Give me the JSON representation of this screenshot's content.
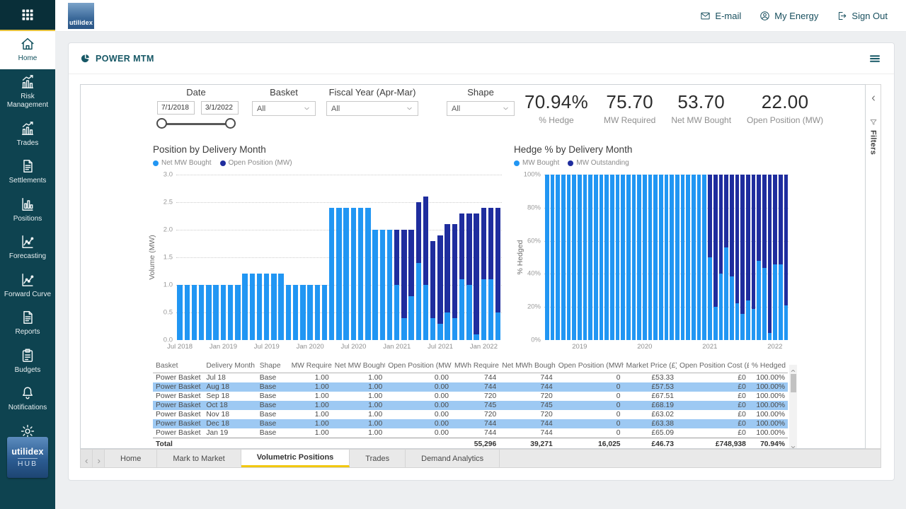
{
  "header": {
    "brand": "utilidex",
    "links": [
      {
        "label": "E-mail",
        "icon": "envelope"
      },
      {
        "label": "My Energy",
        "icon": "person"
      },
      {
        "label": "Sign Out",
        "icon": "signout"
      }
    ]
  },
  "sidebar": {
    "items": [
      {
        "label": "Home",
        "icon": "home",
        "active": true
      },
      {
        "label": "Risk Management",
        "icon": "chart-up",
        "active": false
      },
      {
        "label": "Trades",
        "icon": "chart-up",
        "active": false
      },
      {
        "label": "Settlements",
        "icon": "document",
        "active": false
      },
      {
        "label": "Positions",
        "icon": "bar-chart",
        "active": false
      },
      {
        "label": "Forecasting",
        "icon": "line-chart",
        "active": false
      },
      {
        "label": "Forward Curve",
        "icon": "line-chart",
        "active": false
      },
      {
        "label": "Reports",
        "icon": "document",
        "active": false
      },
      {
        "label": "Budgets",
        "icon": "clipboard",
        "active": false
      },
      {
        "label": "Notifications",
        "icon": "bell",
        "active": false
      },
      {
        "label": "Settings",
        "icon": "gear",
        "active": false
      }
    ],
    "logo": {
      "line1": "utilidex",
      "line2": "HUB"
    }
  },
  "panel": {
    "title": "POWER MTM"
  },
  "filters": {
    "date": {
      "label": "Date",
      "from": "7/1/2018",
      "to": "3/1/2022"
    },
    "basket": {
      "label": "Basket",
      "value": "All"
    },
    "fiscal_year": {
      "label": "Fiscal Year (Apr-Mar)",
      "value": "All"
    },
    "shape": {
      "label": "Shape",
      "value": "All"
    }
  },
  "kpis": [
    {
      "value": "70.94%",
      "label": "% Hedge"
    },
    {
      "value": "75.70",
      "label": "MW Required"
    },
    {
      "value": "53.70",
      "label": "Net MW Bought"
    },
    {
      "value": "22.00",
      "label": "Open Position (MW)"
    }
  ],
  "filters_pane": {
    "label": "Filters"
  },
  "chart_data": [
    {
      "type": "bar",
      "stacked": true,
      "title": "Position by Delivery Month",
      "ylabel": "Volume (MW)",
      "ylim": [
        0,
        3
      ],
      "yticks": [
        "3.0",
        "2.5",
        "2.0",
        "1.5",
        "1.0",
        "0.5",
        "0.0"
      ],
      "categories": [
        "Jul 2018",
        "Aug 2018",
        "Sep 2018",
        "Oct 2018",
        "Nov 2018",
        "Dec 2018",
        "Jan 2019",
        "Feb 2019",
        "Mar 2019",
        "Apr 2019",
        "May 2019",
        "Jun 2019",
        "Jul 2019",
        "Aug 2019",
        "Sep 2019",
        "Oct 2019",
        "Nov 2019",
        "Dec 2019",
        "Jan 2020",
        "Feb 2020",
        "Mar 2020",
        "Apr 2020",
        "May 2020",
        "Jun 2020",
        "Jul 2020",
        "Aug 2020",
        "Sep 2020",
        "Oct 2020",
        "Nov 2020",
        "Dec 2020",
        "Jan 2021",
        "Feb 2021",
        "Mar 2021",
        "Apr 2021",
        "May 2021",
        "Jun 2021",
        "Jul 2021",
        "Aug 2021",
        "Sep 2021",
        "Oct 2021",
        "Nov 2021",
        "Dec 2021",
        "Jan 2022",
        "Feb 2022",
        "Mar 2022"
      ],
      "series": [
        {
          "name": "Net MW Bought",
          "color": "#2196f3",
          "values": [
            1,
            1,
            1,
            1,
            1,
            1,
            1,
            1,
            1,
            1.2,
            1.2,
            1.2,
            1.2,
            1.2,
            1.2,
            1,
            1,
            1,
            1,
            1,
            1,
            2.4,
            2.4,
            2.4,
            2.4,
            2.4,
            2.4,
            2,
            2,
            2,
            1,
            0.4,
            0.8,
            1.4,
            1,
            0.4,
            0.3,
            0.5,
            0.4,
            1.1,
            1,
            0.1,
            1.1,
            1.1,
            0.5
          ]
        },
        {
          "name": "Open Position (MW)",
          "color": "#1f2d9e",
          "values": [
            0,
            0,
            0,
            0,
            0,
            0,
            0,
            0,
            0,
            0,
            0,
            0,
            0,
            0,
            0,
            0,
            0,
            0,
            0,
            0,
            0,
            0,
            0,
            0,
            0,
            0,
            0,
            0,
            0,
            0,
            1,
            1.6,
            1.2,
            1.1,
            1.6,
            1.4,
            1.6,
            1.6,
            1.7,
            1.2,
            1.3,
            2.2,
            1.3,
            1.3,
            1.9
          ]
        }
      ],
      "x_ticks": [
        {
          "i": 0,
          "label": "Jul 2018"
        },
        {
          "i": 6,
          "label": "Jan 2019"
        },
        {
          "i": 12,
          "label": "Jul 2019"
        },
        {
          "i": 18,
          "label": "Jan 2020"
        },
        {
          "i": 24,
          "label": "Jul 2020"
        },
        {
          "i": 30,
          "label": "Jan 2021"
        },
        {
          "i": 36,
          "label": "Jul 2021"
        },
        {
          "i": 42,
          "label": "Jan 2022"
        }
      ]
    },
    {
      "type": "bar",
      "stacked": true,
      "percent": true,
      "title": "Hedge % by Delivery Month",
      "ylabel": "% Hedged",
      "ylim": [
        0,
        100
      ],
      "yticks": [
        "100%",
        "80%",
        "60%",
        "40%",
        "20%",
        "0%"
      ],
      "categories": [
        "Jul 2018",
        "Aug 2018",
        "Sep 2018",
        "Oct 2018",
        "Nov 2018",
        "Dec 2018",
        "Jan 2019",
        "Feb 2019",
        "Mar 2019",
        "Apr 2019",
        "May 2019",
        "Jun 2019",
        "Jul 2019",
        "Aug 2019",
        "Sep 2019",
        "Oct 2019",
        "Nov 2019",
        "Dec 2019",
        "Jan 2020",
        "Feb 2020",
        "Mar 2020",
        "Apr 2020",
        "May 2020",
        "Jun 2020",
        "Jul 2020",
        "Aug 2020",
        "Sep 2020",
        "Oct 2020",
        "Nov 2020",
        "Dec 2020",
        "Jan 2021",
        "Feb 2021",
        "Mar 2021",
        "Apr 2021",
        "May 2021",
        "Jun 2021",
        "Jul 2021",
        "Aug 2021",
        "Sep 2021",
        "Oct 2021",
        "Nov 2021",
        "Dec 2021",
        "Jan 2022",
        "Feb 2022",
        "Mar 2022"
      ],
      "series": [
        {
          "name": "MW Bought",
          "color": "#2196f3",
          "values": [
            100,
            100,
            100,
            100,
            100,
            100,
            100,
            100,
            100,
            100,
            100,
            100,
            100,
            100,
            100,
            100,
            100,
            100,
            100,
            100,
            100,
            100,
            100,
            100,
            100,
            100,
            100,
            100,
            100,
            100,
            50,
            20,
            40,
            56,
            38.5,
            22.2,
            15.8,
            23.8,
            19,
            47.8,
            43.5,
            4.3,
            45.8,
            45.8,
            20.8
          ]
        },
        {
          "name": "MW Outstanding",
          "color": "#1f2d9e",
          "values": [
            0,
            0,
            0,
            0,
            0,
            0,
            0,
            0,
            0,
            0,
            0,
            0,
            0,
            0,
            0,
            0,
            0,
            0,
            0,
            0,
            0,
            0,
            0,
            0,
            0,
            0,
            0,
            0,
            0,
            0,
            50,
            80,
            60,
            44,
            61.5,
            77.8,
            84.2,
            76.2,
            81,
            52.2,
            56.5,
            95.7,
            54.2,
            54.2,
            79.2
          ]
        }
      ],
      "x_ticks": [
        {
          "i": 6,
          "label": "2019"
        },
        {
          "i": 18,
          "label": "2020"
        },
        {
          "i": 30,
          "label": "2021"
        },
        {
          "i": 42,
          "label": "2022"
        }
      ]
    }
  ],
  "table": {
    "columns": [
      "Basket",
      "Delivery Month",
      "Shape",
      "MW Required",
      "Net MW Bought",
      "Open Position (MW)",
      "MWh Required",
      "Net MWh Bought",
      "Open Position (MWh)",
      "Market Price (£)",
      "Open Position Cost (£)",
      "% Hedged"
    ],
    "rows": [
      [
        "Power Basket",
        "Jul 18",
        "Base",
        "1.00",
        "1.00",
        "0.00",
        "744",
        "744",
        "0",
        "£53.33",
        "£0",
        "100.00%"
      ],
      [
        "Power Basket",
        "Aug 18",
        "Base",
        "1.00",
        "1.00",
        "0.00",
        "744",
        "744",
        "0",
        "£57.53",
        "£0",
        "100.00%"
      ],
      [
        "Power Basket",
        "Sep 18",
        "Base",
        "1.00",
        "1.00",
        "0.00",
        "720",
        "720",
        "0",
        "£67.51",
        "£0",
        "100.00%"
      ],
      [
        "Power Basket",
        "Oct 18",
        "Base",
        "1.00",
        "1.00",
        "0.00",
        "745",
        "745",
        "0",
        "£68.19",
        "£0",
        "100.00%"
      ],
      [
        "Power Basket",
        "Nov 18",
        "Base",
        "1.00",
        "1.00",
        "0.00",
        "720",
        "720",
        "0",
        "£63.02",
        "£0",
        "100.00%"
      ],
      [
        "Power Basket",
        "Dec 18",
        "Base",
        "1.00",
        "1.00",
        "0.00",
        "744",
        "744",
        "0",
        "£63.38",
        "£0",
        "100.00%"
      ],
      [
        "Power Basket",
        "Jan 19",
        "Base",
        "1.00",
        "1.00",
        "0.00",
        "744",
        "744",
        "0",
        "£65.09",
        "£0",
        "100.00%"
      ]
    ],
    "highlighted_rows": [
      1,
      3,
      5
    ],
    "total": [
      "Total",
      "",
      "",
      "",
      "",
      "",
      "55,296",
      "39,271",
      "16,025",
      "£46.73",
      "£748,938",
      "70.94%"
    ]
  },
  "tabs": {
    "items": [
      {
        "label": "Home",
        "active": false
      },
      {
        "label": "Mark to Market",
        "active": false
      },
      {
        "label": "Volumetric Positions",
        "active": true
      },
      {
        "label": "Trades",
        "active": false
      },
      {
        "label": "Demand Analytics",
        "active": false
      }
    ]
  }
}
